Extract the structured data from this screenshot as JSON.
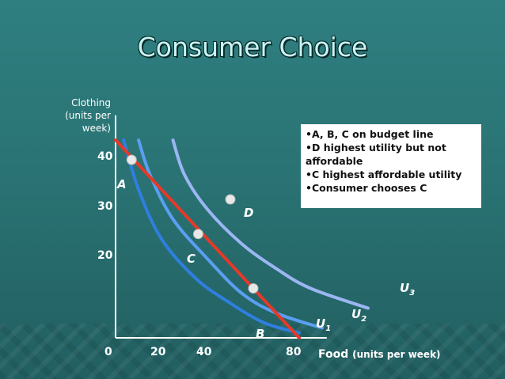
{
  "title": "Consumer Choice",
  "notes": [
    "•A, B, C on budget line",
    "•D highest utility but not affordable",
    "•C highest affordable utility",
    "•Consumer chooses C"
  ],
  "chart_data": {
    "type": "line",
    "xlabel": "Food",
    "xlabel_unit": "(units per week)",
    "ylabel": "Clothing (units per week)",
    "x_ticks": [
      "0",
      "20",
      "40",
      "80"
    ],
    "y_ticks": [
      "40",
      "30",
      "20"
    ],
    "xlim": [
      0,
      90
    ],
    "ylim": [
      0,
      45
    ],
    "budget_line": {
      "points": [
        [
          0,
          40
        ],
        [
          80,
          0
        ]
      ],
      "color": "#e53929"
    },
    "series": [
      {
        "name": "U1",
        "label": "U",
        "sub": "1",
        "color": "#2f7fe0",
        "points": [
          [
            3.5,
            40
          ],
          [
            10,
            30
          ],
          [
            20,
            20
          ],
          [
            35,
            12
          ],
          [
            50,
            7
          ],
          [
            65,
            3
          ],
          [
            80,
            1
          ]
        ]
      },
      {
        "name": "U2",
        "label": "U",
        "sub": "2",
        "color": "#5a9ff2",
        "points": [
          [
            10,
            40
          ],
          [
            15,
            33
          ],
          [
            25,
            24
          ],
          [
            40,
            16
          ],
          [
            55,
            9
          ],
          [
            70,
            5
          ],
          [
            90,
            2
          ]
        ]
      },
      {
        "name": "U3",
        "label": "U",
        "sub": "3",
        "color": "#9bb6f2",
        "points": [
          [
            25,
            40
          ],
          [
            30,
            33
          ],
          [
            40,
            26
          ],
          [
            55,
            19
          ],
          [
            70,
            14
          ],
          [
            85,
            10
          ],
          [
            110,
            6
          ]
        ]
      }
    ],
    "points": [
      {
        "name": "A",
        "x": 7,
        "y": 36
      },
      {
        "name": "C",
        "x": 36,
        "y": 21
      },
      {
        "name": "B",
        "x": 60,
        "y": 10
      },
      {
        "name": "D",
        "x": 50,
        "y": 28
      }
    ],
    "colors": {
      "background": "#2a7374",
      "axis": "#ffffff",
      "point": "#e8e8e8"
    }
  }
}
